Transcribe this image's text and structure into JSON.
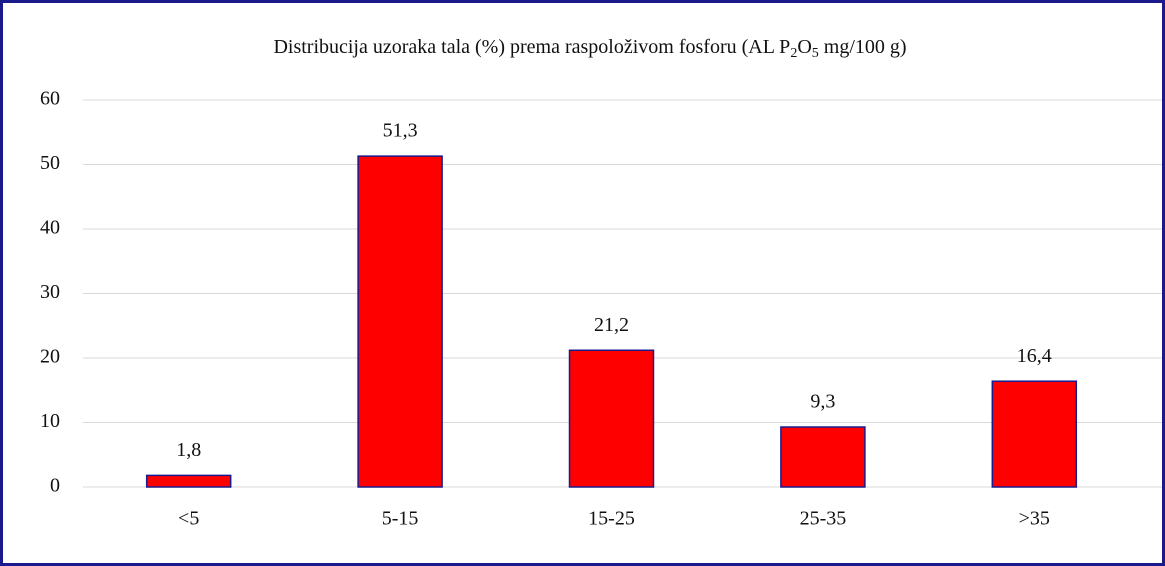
{
  "chart_data": {
    "type": "bar",
    "title": [
      "Distribucija uzoraka tala (%) prema raspoloživom fosforu (AL P",
      "2",
      "O",
      "5",
      " mg/100 g)"
    ],
    "categories": [
      "<5",
      "5-15",
      "15-25",
      "25-35",
      ">35"
    ],
    "values": [
      1.8,
      51.3,
      21.2,
      9.3,
      16.4
    ],
    "value_labels": [
      "1,8",
      "51,3",
      "21,2",
      "9,3",
      "16,4"
    ],
    "color": "#ff0000",
    "ylim": [
      0,
      60
    ],
    "yticks": [
      0,
      10,
      20,
      30,
      40,
      50,
      60
    ],
    "grid": true
  }
}
